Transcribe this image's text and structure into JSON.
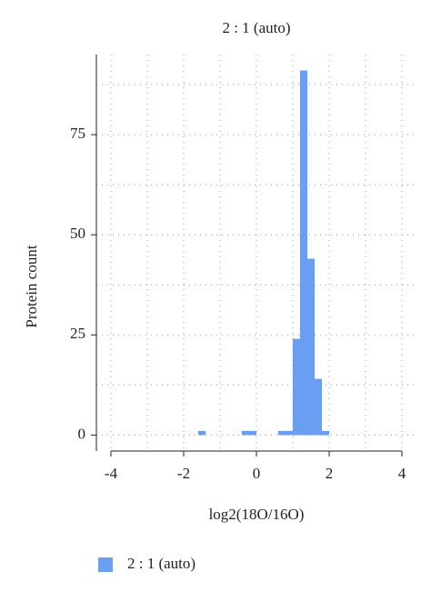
{
  "chart_data": {
    "type": "histogram",
    "title": "2 : 1 (auto)",
    "x_label": "log2(18O/16O)",
    "y_label": "Protein count",
    "bins": [
      -4,
      -3.8,
      -3.6,
      -3.4,
      -3.2,
      -3,
      -2.8,
      -2.6,
      -2.4,
      -2.2,
      -2,
      -1.8,
      -1.6,
      -1.4,
      -1.2,
      -1,
      -0.8,
      -0.6,
      -0.4,
      -0.2,
      0,
      0.2,
      0.4,
      0.6,
      0.8,
      1,
      1.2,
      1.4,
      1.6,
      1.8,
      2,
      2.2,
      2.4,
      2.6,
      2.8,
      3,
      3.2,
      3.4,
      3.6,
      3.8,
      4
    ],
    "series": [
      {
        "name": "2 : 1 (auto)",
        "color": "#6a9ef2",
        "values": [
          0,
          0,
          0,
          0,
          0,
          0,
          0,
          0,
          0,
          0,
          0,
          0,
          1,
          0,
          0,
          0,
          0,
          0,
          1,
          1,
          0,
          0,
          0,
          1,
          1,
          24,
          91,
          44,
          14,
          1,
          0,
          0,
          0,
          0,
          0,
          0,
          0,
          0,
          0,
          0
        ]
      }
    ],
    "xlim": [
      -4.4,
      4.4
    ],
    "ylim": [
      -4,
      95
    ],
    "xticks": [
      -4,
      -2,
      0,
      2,
      4
    ],
    "yticks": [
      0,
      25,
      50,
      75
    ],
    "x_minor_grid": [
      -3,
      -1,
      1,
      3
    ],
    "y_minor_grid": [
      12.5,
      37.5,
      62.5,
      87.5
    ],
    "grid": true,
    "legend": "bottom"
  }
}
